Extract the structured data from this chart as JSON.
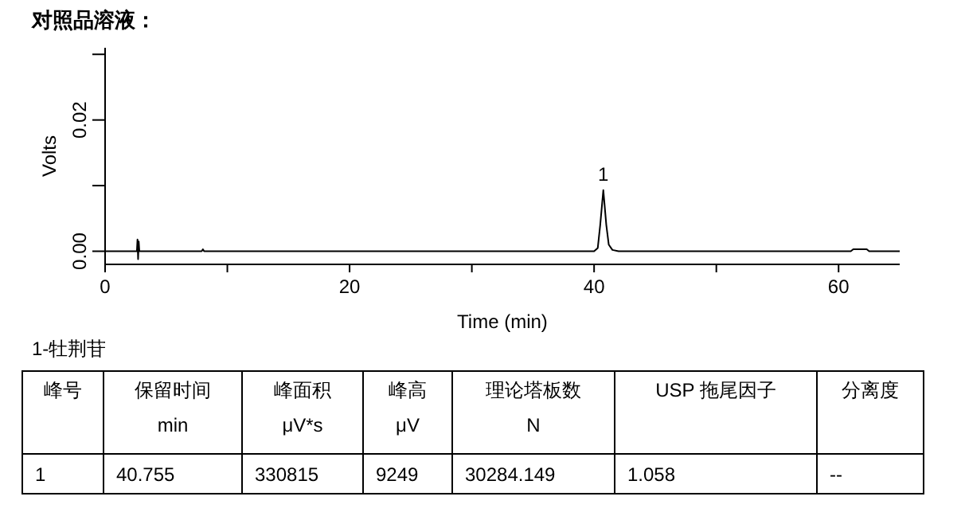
{
  "chart_data": [
    {
      "type": "line",
      "title": "对照品溶液：",
      "xlabel": "Time (min)",
      "ylabel": "Volts",
      "xlim": [
        0,
        65
      ],
      "ylim": [
        -0.002,
        0.031
      ],
      "xticks": [
        0,
        {
          "value": 10,
          "label": null
        },
        20,
        {
          "value": 30,
          "label": null
        },
        40,
        {
          "value": 50,
          "label": null
        },
        60
      ],
      "yticks": [
        {
          "value": 0,
          "label": "0.00"
        },
        {
          "value": 0.01,
          "label": null
        },
        {
          "value": 0.02,
          "label": "0.02"
        },
        {
          "value": 0.03,
          "label": null
        }
      ],
      "series": [
        {
          "color": "#000000",
          "x": [
            0,
            2.6,
            2.65,
            2.7,
            2.75,
            2.8,
            7.9,
            8.0,
            8.1,
            40.0,
            40.3,
            40.5,
            40.755,
            41.0,
            41.2,
            41.5,
            42,
            61,
            61.2,
            62.3,
            62.5,
            65
          ],
          "values": [
            0,
            0,
            0.0018,
            -0.0012,
            0.0015,
            0,
            0,
            0.0003,
            0,
            0,
            0.0005,
            0.004,
            0.0093,
            0.004,
            0.001,
            0.0002,
            0,
            0,
            0.0003,
            0.0003,
            0,
            0
          ]
        }
      ],
      "annotations": [
        "1"
      ],
      "marker": "none",
      "line_style": "solid"
    },
    {
      "type": "other",
      "title": "1-牡荆苷",
      "annotations": [
        "峰号",
        "保留时间\nmin",
        "峰面积\nμV*s",
        "峰高\nμV",
        "理论塔板数\nN",
        "USP 拖尾因子",
        "分离度",
        "1",
        "40.755",
        "330815",
        "9249",
        "30284.149",
        "1.058",
        "--"
      ]
    }
  ]
}
